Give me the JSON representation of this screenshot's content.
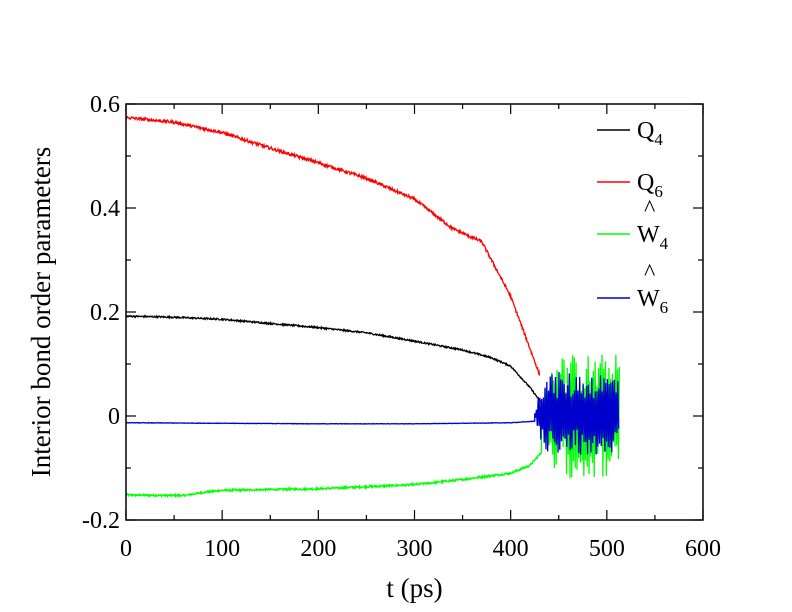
{
  "chart_data": {
    "type": "line",
    "xlabel": "t (ps)",
    "ylabel": "Interior bond order parameters",
    "xlim": [
      0,
      600
    ],
    "ylim": [
      -0.2,
      0.6
    ],
    "x_ticks": [
      0,
      100,
      200,
      300,
      400,
      500,
      600
    ],
    "x_tick_labels": [
      "0",
      "100",
      "200",
      "300",
      "400",
      "500",
      "600"
    ],
    "y_ticks": [
      -0.2,
      0,
      0.2,
      0.4,
      0.6
    ],
    "y_tick_labels": [
      "-0.2",
      "0",
      "0.2",
      "0.4",
      "0.6"
    ],
    "grid": false,
    "legend_position": "top-right",
    "series": [
      {
        "name": "Q4",
        "legend_main": "Q",
        "legend_sub": "4",
        "legend_hat": false,
        "color": "#000000",
        "x": [
          0,
          50,
          100,
          150,
          200,
          250,
          300,
          350,
          380,
          400,
          420,
          435
        ],
        "y": [
          0.192,
          0.19,
          0.186,
          0.178,
          0.17,
          0.16,
          0.144,
          0.127,
          0.112,
          0.096,
          0.055,
          0.018
        ],
        "noise": 0.0015,
        "end_behavior": "drops to ~0 and merges with W6 oscillation"
      },
      {
        "name": "Q6",
        "legend_main": "Q",
        "legend_sub": "6",
        "legend_hat": false,
        "color": "#ff0000",
        "x": [
          0,
          50,
          100,
          150,
          200,
          250,
          300,
          340,
          370,
          380,
          400,
          420,
          430
        ],
        "y": [
          0.574,
          0.565,
          0.545,
          0.515,
          0.487,
          0.457,
          0.417,
          0.36,
          0.335,
          0.3,
          0.23,
          0.13,
          0.08
        ],
        "noise": 0.003
      },
      {
        "name": "W4 (hat)",
        "legend_main": "W",
        "legend_sub": "4",
        "legend_hat": true,
        "color": "#00ff00",
        "x": [
          0,
          60,
          80,
          100,
          200,
          300,
          350,
          400,
          420,
          432
        ],
        "y": [
          -0.152,
          -0.153,
          -0.147,
          -0.143,
          -0.14,
          -0.132,
          -0.122,
          -0.11,
          -0.095,
          -0.07
        ],
        "noise": 0.002,
        "oscillation": {
          "x_start": 432,
          "x_end": 513,
          "amplitude": 0.12,
          "center": 0.0
        }
      },
      {
        "name": "W6 (hat)",
        "legend_main": "W",
        "legend_sub": "6",
        "legend_hat": true,
        "color": "#0000cc",
        "x": [
          0,
          100,
          200,
          300,
          400,
          425
        ],
        "y": [
          -0.013,
          -0.014,
          -0.015,
          -0.015,
          -0.013,
          -0.01
        ],
        "noise": 0.0004,
        "oscillation": {
          "x_start": 425,
          "x_end": 513,
          "amplitude": 0.08,
          "center": 0.005
        }
      }
    ]
  }
}
